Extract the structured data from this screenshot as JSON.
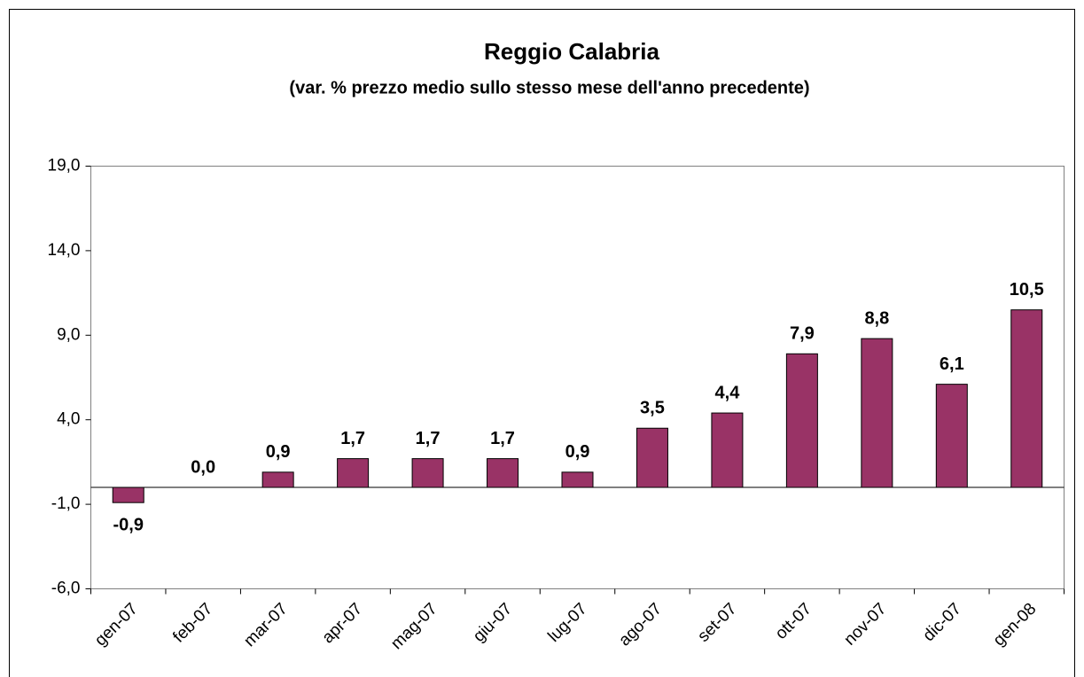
{
  "chart_data": {
    "type": "bar",
    "title": "Reggio Calabria",
    "subtitle": "(var. % prezzo medio sullo stesso mese dell'anno precedente)",
    "categories": [
      "gen-07",
      "feb-07",
      "mar-07",
      "apr-07",
      "mag-07",
      "giu-07",
      "lug-07",
      "ago-07",
      "set-07",
      "ott-07",
      "nov-07",
      "dic-07",
      "gen-08"
    ],
    "values": [
      -0.9,
      0.0,
      0.9,
      1.7,
      1.7,
      1.7,
      0.9,
      3.5,
      4.4,
      7.9,
      8.8,
      6.1,
      10.5
    ],
    "value_labels": [
      "-0,9",
      "0,0",
      "0,9",
      "1,7",
      "1,7",
      "1,7",
      "0,9",
      "3,5",
      "4,4",
      "7,9",
      "8,8",
      "6,1",
      "10,5"
    ],
    "color": "#993366",
    "ylim": [
      -6,
      19
    ],
    "yticks": [
      {
        "value": -6,
        "label": "-6,0"
      },
      {
        "value": -1,
        "label": "-1,0"
      },
      {
        "value": 4,
        "label": "4,0"
      },
      {
        "value": 9,
        "label": "9,0"
      },
      {
        "value": 14,
        "label": "14,0"
      },
      {
        "value": 19,
        "label": "19,0"
      }
    ],
    "grid": false
  }
}
